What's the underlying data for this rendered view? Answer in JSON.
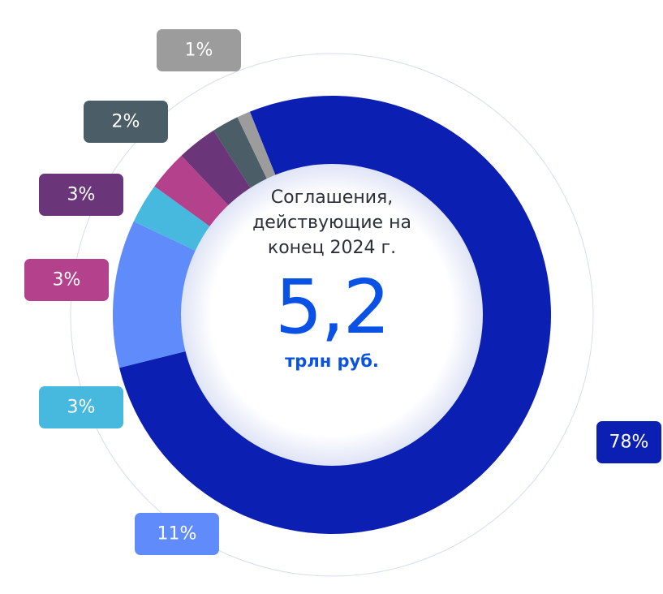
{
  "chart_data": {
    "type": "pie",
    "title": "Соглашения, действующие на конец 2024 г.",
    "total_label": "5,2",
    "unit": "трлн руб.",
    "values": [
      78,
      11,
      3,
      3,
      3,
      2,
      1
    ],
    "value_labels": [
      "78%",
      "11%",
      "3%",
      "3%",
      "3%",
      "2%",
      "1%"
    ],
    "colors": [
      "#0b1fb3",
      "#5f8bfb",
      "#48b9de",
      "#b3418b",
      "#6a3579",
      "#4b5d67",
      "#9c9c9c"
    ],
    "donut": true
  }
}
